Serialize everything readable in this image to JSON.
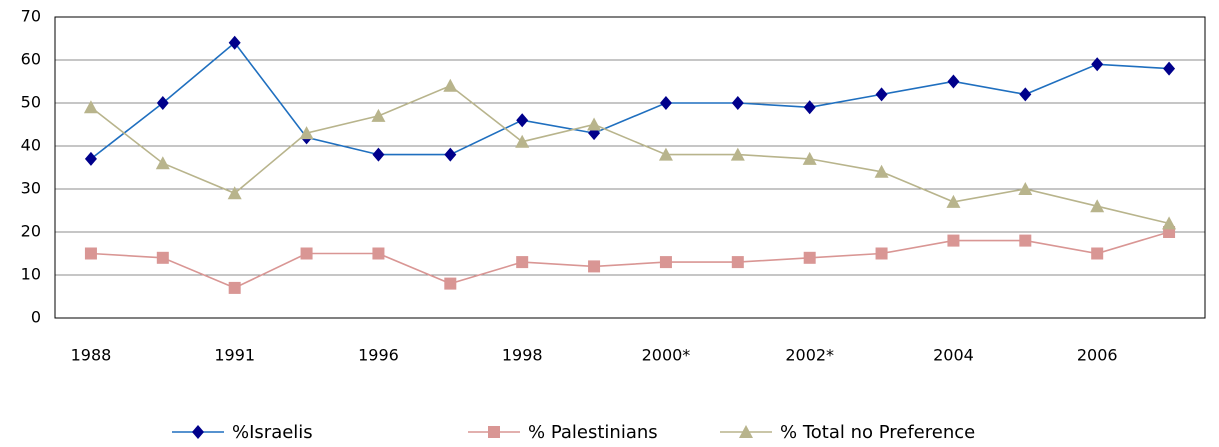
{
  "chart_data": {
    "type": "line",
    "categories": [
      "1988",
      null,
      "1991",
      null,
      "1996",
      null,
      "1998",
      null,
      "2000*",
      null,
      "2002*",
      null,
      "2004",
      null,
      "2006",
      null
    ],
    "series": [
      {
        "name": "%Israelis",
        "color": "#1f6fbf",
        "marker_color": "#00008b",
        "marker": "diamond",
        "values": [
          37,
          50,
          64,
          42,
          38,
          38,
          46,
          43,
          50,
          50,
          49,
          52,
          55,
          52,
          59,
          58
        ]
      },
      {
        "name": "% Palestinians",
        "color": "#d99694",
        "marker_color": "#d99694",
        "marker": "square",
        "values": [
          15,
          14,
          7,
          15,
          15,
          8,
          13,
          12,
          13,
          13,
          14,
          15,
          18,
          18,
          15,
          20
        ]
      },
      {
        "name": "% Total no Preference",
        "color": "#b8b48c",
        "marker_color": "#b8b48c",
        "marker": "triangle",
        "values": [
          49,
          36,
          29,
          43,
          47,
          54,
          41,
          45,
          38,
          38,
          37,
          34,
          27,
          30,
          26,
          22
        ]
      }
    ],
    "ylim": [
      0,
      70
    ],
    "yticks": [
      0,
      10,
      20,
      30,
      40,
      50,
      60,
      70
    ],
    "grid": true,
    "legend": "bottom"
  }
}
